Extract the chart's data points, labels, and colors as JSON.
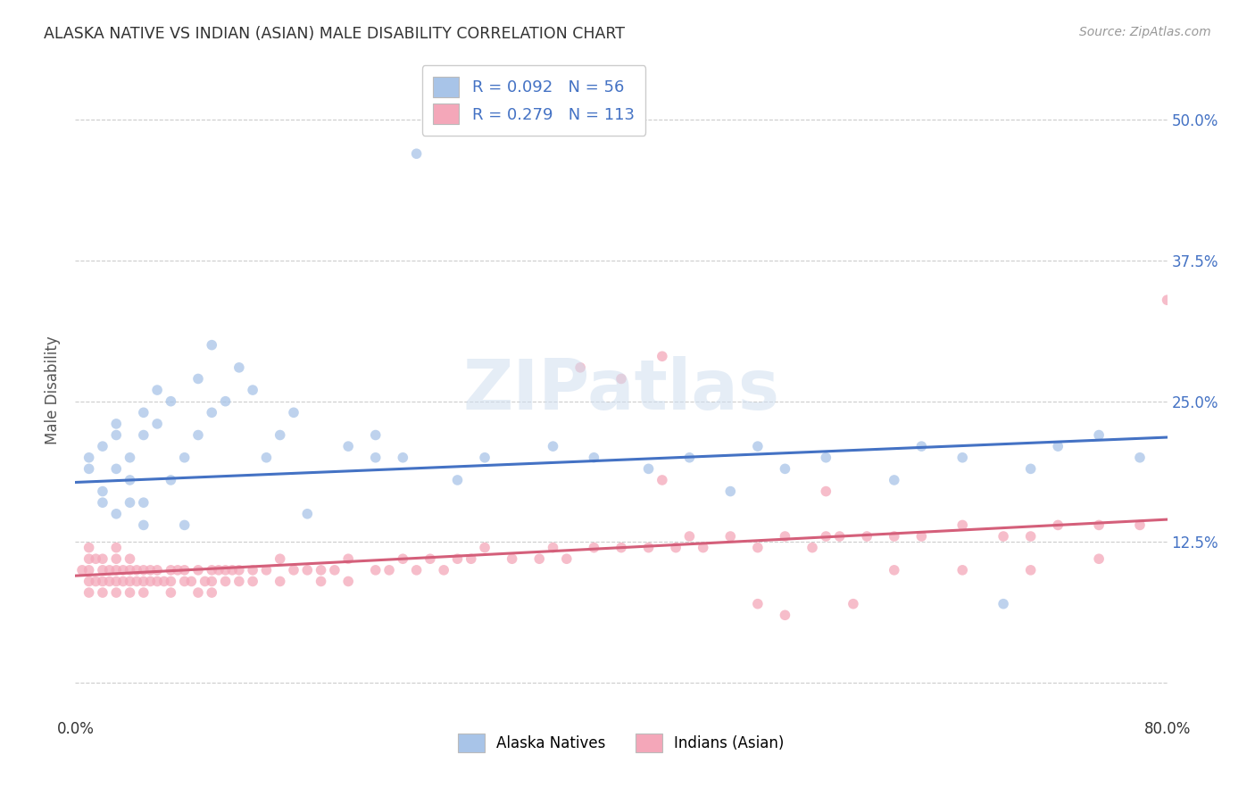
{
  "title": "ALASKA NATIVE VS INDIAN (ASIAN) MALE DISABILITY CORRELATION CHART",
  "source": "Source: ZipAtlas.com",
  "ylabel": "Male Disability",
  "xlim": [
    0.0,
    0.8
  ],
  "ylim": [
    -0.03,
    0.55
  ],
  "ytick_positions": [
    0.0,
    0.125,
    0.25,
    0.375,
    0.5
  ],
  "yticklabels_right": [
    "",
    "12.5%",
    "25.0%",
    "37.5%",
    "50.0%"
  ],
  "alaska_color": "#a8c4e8",
  "alaska_line_color": "#4472c4",
  "indian_color": "#f4a7b9",
  "indian_line_color": "#d45f7a",
  "alaska_R": 0.092,
  "alaska_N": 56,
  "indian_R": 0.279,
  "indian_N": 113,
  "legend_label_alaska": "Alaska Natives",
  "legend_label_indian": "Indians (Asian)",
  "watermark": "ZIPatlas",
  "background_color": "#ffffff",
  "alaska_x": [
    0.01,
    0.01,
    0.02,
    0.02,
    0.02,
    0.03,
    0.03,
    0.03,
    0.03,
    0.04,
    0.04,
    0.04,
    0.05,
    0.05,
    0.05,
    0.05,
    0.06,
    0.06,
    0.07,
    0.07,
    0.08,
    0.08,
    0.09,
    0.09,
    0.1,
    0.1,
    0.11,
    0.12,
    0.13,
    0.14,
    0.15,
    0.16,
    0.17,
    0.2,
    0.22,
    0.22,
    0.24,
    0.25,
    0.28,
    0.3,
    0.35,
    0.38,
    0.42,
    0.45,
    0.48,
    0.5,
    0.52,
    0.55,
    0.6,
    0.62,
    0.65,
    0.68,
    0.7,
    0.72,
    0.75,
    0.78
  ],
  "alaska_y": [
    0.19,
    0.2,
    0.17,
    0.21,
    0.16,
    0.22,
    0.19,
    0.15,
    0.23,
    0.18,
    0.16,
    0.2,
    0.24,
    0.14,
    0.22,
    0.16,
    0.26,
    0.23,
    0.25,
    0.18,
    0.14,
    0.2,
    0.22,
    0.27,
    0.24,
    0.3,
    0.25,
    0.28,
    0.26,
    0.2,
    0.22,
    0.24,
    0.15,
    0.21,
    0.22,
    0.2,
    0.2,
    0.47,
    0.18,
    0.2,
    0.21,
    0.2,
    0.19,
    0.2,
    0.17,
    0.21,
    0.19,
    0.2,
    0.18,
    0.21,
    0.2,
    0.07,
    0.19,
    0.21,
    0.22,
    0.2
  ],
  "indian_x": [
    0.005,
    0.01,
    0.01,
    0.01,
    0.01,
    0.01,
    0.015,
    0.015,
    0.02,
    0.02,
    0.02,
    0.02,
    0.025,
    0.025,
    0.03,
    0.03,
    0.03,
    0.03,
    0.03,
    0.035,
    0.035,
    0.04,
    0.04,
    0.04,
    0.04,
    0.045,
    0.045,
    0.05,
    0.05,
    0.05,
    0.055,
    0.055,
    0.06,
    0.06,
    0.065,
    0.07,
    0.07,
    0.07,
    0.075,
    0.08,
    0.08,
    0.085,
    0.09,
    0.09,
    0.095,
    0.1,
    0.1,
    0.1,
    0.105,
    0.11,
    0.11,
    0.115,
    0.12,
    0.12,
    0.13,
    0.13,
    0.14,
    0.15,
    0.15,
    0.16,
    0.17,
    0.18,
    0.18,
    0.19,
    0.2,
    0.2,
    0.22,
    0.23,
    0.24,
    0.25,
    0.26,
    0.27,
    0.28,
    0.29,
    0.3,
    0.32,
    0.34,
    0.35,
    0.36,
    0.38,
    0.4,
    0.42,
    0.44,
    0.45,
    0.46,
    0.48,
    0.5,
    0.52,
    0.54,
    0.55,
    0.56,
    0.58,
    0.6,
    0.62,
    0.65,
    0.68,
    0.7,
    0.72,
    0.75,
    0.78,
    0.4,
    0.43,
    0.8,
    0.37,
    0.43,
    0.55,
    0.6,
    0.65,
    0.7,
    0.75,
    0.5,
    0.52,
    0.57
  ],
  "indian_y": [
    0.1,
    0.09,
    0.11,
    0.08,
    0.12,
    0.1,
    0.09,
    0.11,
    0.08,
    0.1,
    0.11,
    0.09,
    0.1,
    0.09,
    0.08,
    0.1,
    0.09,
    0.11,
    0.12,
    0.09,
    0.1,
    0.08,
    0.1,
    0.09,
    0.11,
    0.09,
    0.1,
    0.08,
    0.1,
    0.09,
    0.1,
    0.09,
    0.09,
    0.1,
    0.09,
    0.08,
    0.1,
    0.09,
    0.1,
    0.09,
    0.1,
    0.09,
    0.08,
    0.1,
    0.09,
    0.09,
    0.1,
    0.08,
    0.1,
    0.1,
    0.09,
    0.1,
    0.09,
    0.1,
    0.09,
    0.1,
    0.1,
    0.09,
    0.11,
    0.1,
    0.1,
    0.09,
    0.1,
    0.1,
    0.09,
    0.11,
    0.1,
    0.1,
    0.11,
    0.1,
    0.11,
    0.1,
    0.11,
    0.11,
    0.12,
    0.11,
    0.11,
    0.12,
    0.11,
    0.12,
    0.12,
    0.12,
    0.12,
    0.13,
    0.12,
    0.13,
    0.12,
    0.13,
    0.12,
    0.13,
    0.13,
    0.13,
    0.13,
    0.13,
    0.14,
    0.13,
    0.13,
    0.14,
    0.14,
    0.14,
    0.27,
    0.29,
    0.34,
    0.28,
    0.18,
    0.17,
    0.1,
    0.1,
    0.1,
    0.11,
    0.07,
    0.06,
    0.07
  ],
  "alaska_line_x0": 0.0,
  "alaska_line_y0": 0.178,
  "alaska_line_x1": 0.8,
  "alaska_line_y1": 0.218,
  "indian_line_x0": 0.0,
  "indian_line_y0": 0.095,
  "indian_line_x1": 0.8,
  "indian_line_y1": 0.145
}
